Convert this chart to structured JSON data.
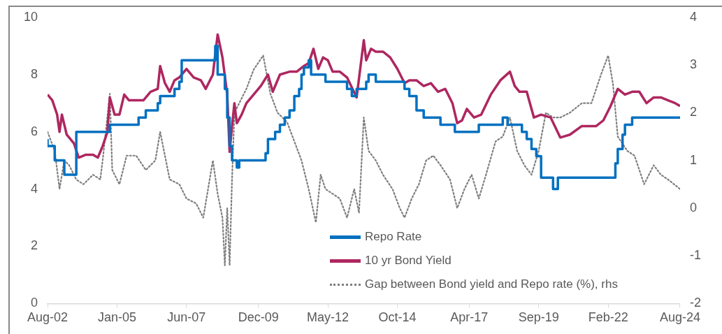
{
  "chart_data": {
    "type": "line",
    "marker": "none",
    "legend": "bottom",
    "xlim": [
      "2002-08",
      "2024-08"
    ],
    "xticks": [
      {
        "value": "2002-08",
        "label": "Aug-02"
      },
      {
        "value": "2005-01",
        "label": "Jan-05"
      },
      {
        "value": "2007-06",
        "label": "Jun-07"
      },
      {
        "value": "2009-12",
        "label": "Dec-09"
      },
      {
        "value": "2012-05",
        "label": "May-12"
      },
      {
        "value": "2014-10",
        "label": "Oct-14"
      },
      {
        "value": "2017-04",
        "label": "Apr-17"
      },
      {
        "value": "2019-09",
        "label": "Sep-19"
      },
      {
        "value": "2022-02",
        "label": "Feb-22"
      },
      {
        "value": "2024-08",
        "label": "Aug-24"
      }
    ],
    "ylim": [
      0,
      10
    ],
    "yticks": [
      0,
      2,
      4,
      6,
      8,
      10
    ],
    "y2lim": [
      -2,
      4
    ],
    "y2ticks": [
      -2,
      -1,
      0,
      1,
      2,
      3,
      4
    ],
    "series": [
      {
        "name": "Repo Rate",
        "type": "step",
        "color": "#0070c0",
        "line_style": "solid",
        "x": [
          "2002-08",
          "2002-11",
          "2003-03",
          "2003-08",
          "2004-10",
          "2005-10",
          "2006-01",
          "2006-06",
          "2006-07",
          "2007-01",
          "2007-03",
          "2007-04",
          "2008-06",
          "2008-07",
          "2008-10",
          "2008-11",
          "2008-12",
          "2009-01",
          "2009-03",
          "2009-04",
          "2010-03",
          "2010-04",
          "2010-07",
          "2010-09",
          "2010-11",
          "2011-01",
          "2011-03",
          "2011-05",
          "2011-06",
          "2011-07",
          "2011-09",
          "2011-10",
          "2012-04",
          "2013-01",
          "2013-03",
          "2013-05",
          "2013-09",
          "2013-10",
          "2014-01",
          "2015-01",
          "2015-03",
          "2015-06",
          "2015-09",
          "2016-04",
          "2016-10",
          "2017-08",
          "2018-06",
          "2018-08",
          "2019-02",
          "2019-04",
          "2019-06",
          "2019-08",
          "2019-10",
          "2020-03",
          "2020-05",
          "2022-05",
          "2022-06",
          "2022-08",
          "2022-09",
          "2022-12",
          "2023-02",
          "2024-08"
        ],
        "values": [
          5.75,
          5.5,
          5.0,
          4.5,
          6.0,
          6.25,
          6.5,
          6.75,
          7.0,
          7.25,
          7.5,
          7.75,
          8.5,
          9.0,
          8.0,
          7.5,
          6.5,
          5.5,
          5.0,
          4.75,
          5.0,
          5.25,
          5.75,
          6.0,
          6.25,
          6.5,
          6.75,
          7.25,
          7.5,
          8.0,
          8.25,
          8.5,
          8.0,
          7.75,
          7.5,
          7.25,
          7.5,
          7.75,
          8.0,
          7.75,
          7.5,
          7.25,
          6.75,
          6.5,
          6.25,
          6.0,
          6.25,
          6.5,
          6.25,
          6.0,
          5.75,
          5.4,
          5.15,
          4.4,
          4.0,
          4.4,
          4.9,
          5.4,
          5.9,
          6.25,
          6.5,
          6.5
        ]
      },
      {
        "name": "10 yr Bond Yield",
        "type": "line",
        "color": "#ae2760",
        "line_style": "solid",
        "x": [
          "2002-08",
          "2002-10",
          "2002-12",
          "2003-01",
          "2003-02",
          "2003-04",
          "2003-07",
          "2003-09",
          "2003-12",
          "2004-03",
          "2004-05",
          "2004-07",
          "2004-09",
          "2004-10",
          "2004-12",
          "2005-02",
          "2005-04",
          "2005-06",
          "2005-09",
          "2005-12",
          "2006-03",
          "2006-06",
          "2006-07",
          "2006-09",
          "2006-11",
          "2007-01",
          "2007-03",
          "2007-06",
          "2007-09",
          "2007-12",
          "2008-02",
          "2008-05",
          "2008-07",
          "2008-09",
          "2008-11",
          "2008-12",
          "2009-01",
          "2009-02",
          "2009-03",
          "2009-05",
          "2009-07",
          "2009-10",
          "2010-01",
          "2010-04",
          "2010-06",
          "2010-09",
          "2011-01",
          "2011-04",
          "2011-07",
          "2011-09",
          "2011-11",
          "2012-01",
          "2012-03",
          "2012-05",
          "2012-07",
          "2012-10",
          "2013-01",
          "2013-05",
          "2013-08",
          "2013-09",
          "2013-11",
          "2014-01",
          "2014-04",
          "2014-07",
          "2014-10",
          "2015-01",
          "2015-03",
          "2015-06",
          "2015-09",
          "2015-12",
          "2016-03",
          "2016-06",
          "2016-09",
          "2016-11",
          "2017-01",
          "2017-03",
          "2017-06",
          "2017-09",
          "2018-01",
          "2018-05",
          "2018-09",
          "2018-11",
          "2019-01",
          "2019-04",
          "2019-07",
          "2019-10",
          "2020-02",
          "2020-06",
          "2020-10",
          "2021-03",
          "2021-09",
          "2021-12",
          "2022-03",
          "2022-06",
          "2022-09",
          "2022-12",
          "2023-03",
          "2023-06",
          "2023-09",
          "2023-12",
          "2024-03",
          "2024-06",
          "2024-08"
        ],
        "values": [
          7.3,
          7.1,
          6.6,
          6.0,
          6.6,
          5.9,
          5.6,
          5.1,
          5.2,
          5.2,
          5.1,
          5.5,
          6.0,
          7.2,
          6.6,
          6.6,
          7.3,
          7.1,
          7.1,
          7.1,
          7.4,
          7.5,
          8.3,
          7.7,
          7.4,
          7.8,
          7.9,
          8.2,
          7.9,
          7.8,
          7.5,
          8.0,
          9.4,
          8.6,
          7.3,
          5.3,
          6.2,
          7.0,
          6.3,
          6.6,
          7.0,
          7.3,
          7.6,
          8.0,
          7.4,
          8.0,
          8.1,
          8.1,
          8.3,
          8.4,
          8.9,
          8.2,
          8.6,
          8.5,
          8.1,
          8.1,
          7.9,
          7.2,
          9.2,
          8.5,
          8.9,
          8.8,
          8.8,
          8.6,
          8.2,
          7.7,
          7.8,
          7.8,
          7.6,
          7.7,
          7.4,
          7.5,
          7.0,
          6.3,
          6.4,
          6.8,
          6.5,
          6.6,
          7.3,
          7.8,
          8.1,
          7.6,
          7.4,
          7.4,
          6.5,
          6.6,
          6.5,
          5.8,
          5.9,
          6.2,
          6.2,
          6.4,
          6.9,
          7.5,
          7.3,
          7.4,
          7.4,
          7.0,
          7.2,
          7.2,
          7.1,
          7.0,
          6.9
        ]
      },
      {
        "name": "Gap between Bond yield and Repo rate (%), rhs",
        "type": "line",
        "axis": "y2",
        "color": "#7f7f7f",
        "line_style": "dotted",
        "x": [
          "2002-08",
          "2002-11",
          "2003-01",
          "2003-03",
          "2003-05",
          "2003-08",
          "2003-11",
          "2004-03",
          "2004-06",
          "2004-07",
          "2004-10",
          "2004-11",
          "2005-02",
          "2005-05",
          "2005-09",
          "2006-01",
          "2006-05",
          "2006-07",
          "2006-09",
          "2006-11",
          "2007-03",
          "2007-06",
          "2007-10",
          "2008-01",
          "2008-03",
          "2008-05",
          "2008-07",
          "2008-09",
          "2008-10",
          "2008-11",
          "2008-12",
          "2009-01",
          "2009-02",
          "2009-04",
          "2009-07",
          "2009-10",
          "2010-02",
          "2010-05",
          "2010-08",
          "2010-12",
          "2011-03",
          "2011-06",
          "2011-09",
          "2011-12",
          "2012-02",
          "2012-04",
          "2012-07",
          "2012-10",
          "2013-01",
          "2013-04",
          "2013-06",
          "2013-08",
          "2013-10",
          "2014-01",
          "2014-04",
          "2014-08",
          "2014-11",
          "2015-01",
          "2015-04",
          "2015-07",
          "2015-10",
          "2016-01",
          "2016-04",
          "2016-08",
          "2016-11",
          "2017-02",
          "2017-05",
          "2017-08",
          "2017-11",
          "2018-03",
          "2018-06",
          "2018-09",
          "2018-12",
          "2019-03",
          "2019-06",
          "2019-09",
          "2019-12",
          "2020-03",
          "2020-06",
          "2020-10",
          "2021-03",
          "2021-07",
          "2021-11",
          "2022-02",
          "2022-04",
          "2022-06",
          "2022-10",
          "2023-01",
          "2023-05",
          "2023-09",
          "2023-12",
          "2024-03",
          "2024-08"
        ],
        "values": [
          1.6,
          1.2,
          0.4,
          1.0,
          0.9,
          0.6,
          0.5,
          0.7,
          0.6,
          1.0,
          2.4,
          0.8,
          0.5,
          1.1,
          1.1,
          0.8,
          1.0,
          1.6,
          1.1,
          0.6,
          0.5,
          0.2,
          0.1,
          -0.2,
          0.4,
          1.0,
          0.3,
          -0.2,
          -1.2,
          0.0,
          -1.2,
          0.6,
          2.0,
          2.2,
          2.5,
          2.9,
          3.2,
          2.4,
          2.0,
          1.8,
          1.4,
          1.0,
          0.4,
          -0.3,
          0.7,
          0.4,
          0.3,
          0.2,
          -0.2,
          0.4,
          -0.1,
          1.9,
          1.2,
          1.0,
          0.7,
          0.4,
          0.0,
          -0.2,
          0.2,
          0.5,
          1.0,
          1.1,
          0.9,
          0.6,
          0.0,
          0.4,
          0.7,
          0.2,
          0.7,
          1.4,
          1.5,
          1.9,
          1.2,
          0.9,
          0.7,
          1.2,
          2.0,
          1.9,
          1.9,
          2.0,
          2.2,
          2.2,
          2.8,
          3.2,
          2.6,
          1.5,
          1.2,
          1.1,
          0.5,
          0.9,
          0.7,
          0.6,
          0.4
        ]
      }
    ]
  }
}
